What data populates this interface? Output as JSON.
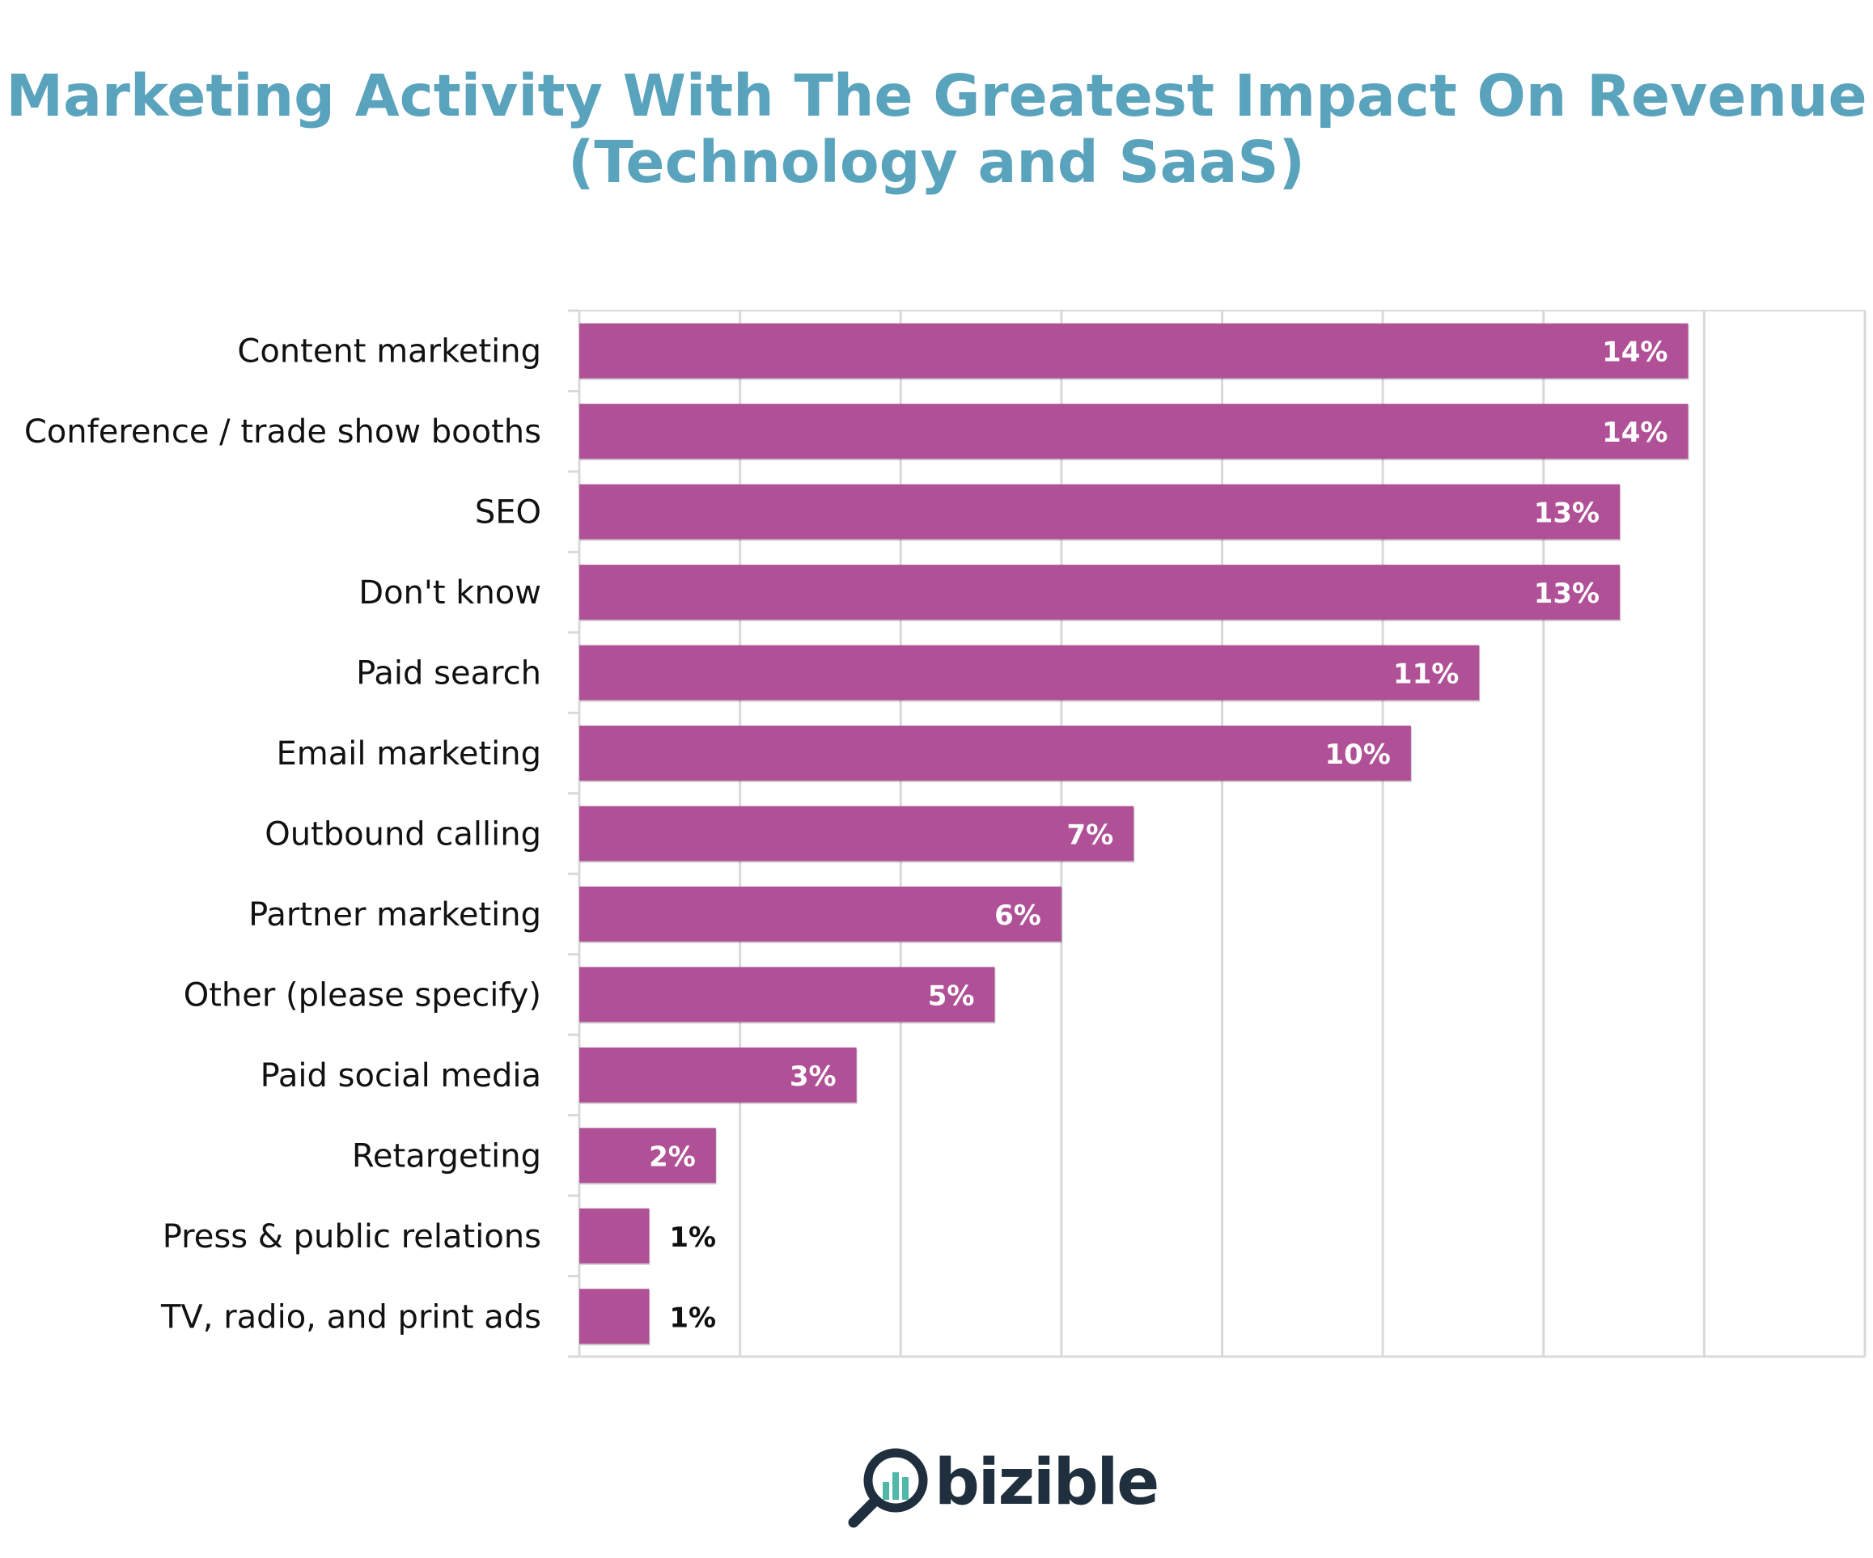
{
  "title_line1": "Marketing Activity With The Greatest Impact On Revenue",
  "title_line2": "(Technology and SaaS)",
  "brand": {
    "name": "bizible",
    "icon": "magnifier-bar-chart-icon"
  },
  "colors": {
    "title": "#5aa3bd",
    "bar": "#b05096",
    "grid": "#d9d9d9",
    "label_inside": "#ffffff",
    "label_outside": "#111111",
    "brand_dark": "#1f2f3d",
    "brand_teal": "#4fb8a8"
  },
  "chart_data": {
    "type": "bar",
    "orientation": "horizontal",
    "title": "Marketing Activity With The Greatest Impact On Revenue (Technology and SaaS)",
    "categories": [
      "Content marketing",
      "Conference / trade show booths",
      "SEO",
      "Don't know",
      "Paid search",
      "Email marketing",
      "Outbound calling",
      "Partner marketing",
      "Other (please specify)",
      "Paid social media",
      "Retargeting",
      "Press & public relations",
      "TV, radio, and print ads"
    ],
    "values": [
      13.8,
      13.8,
      12.95,
      12.95,
      11.2,
      10.35,
      6.9,
      6.0,
      5.17,
      3.45,
      1.7,
      0.87,
      0.87
    ],
    "data_labels": [
      "14%",
      "14%",
      "13%",
      "13%",
      "11%",
      "10%",
      "7%",
      "6%",
      "5%",
      "3%",
      "2%",
      "1%",
      "1%"
    ],
    "xlim": [
      0,
      16
    ],
    "gridlines": [
      2,
      4,
      6,
      8,
      10,
      12,
      14,
      16
    ],
    "x_tick_labels_shown": false,
    "grid": true,
    "legend": "none"
  }
}
